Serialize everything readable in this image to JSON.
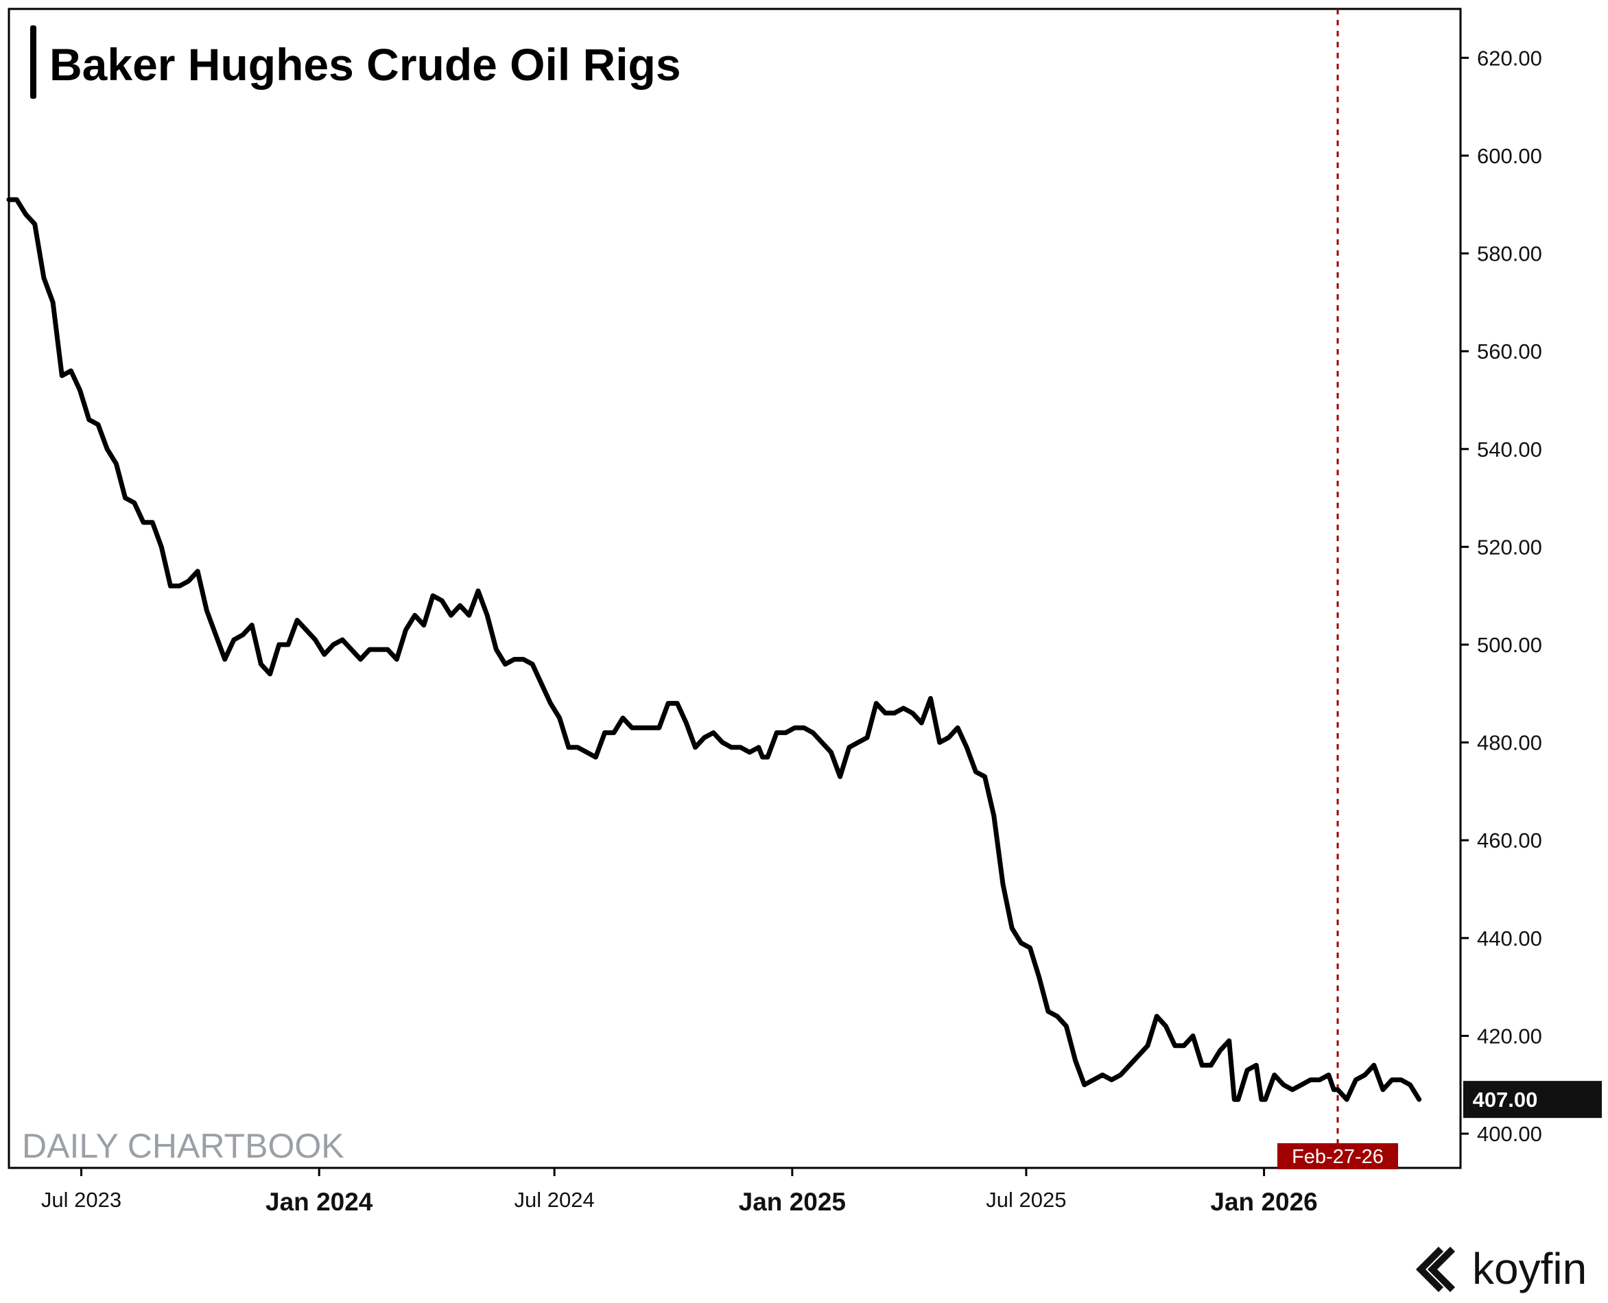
{
  "title": "Baker Hughes Crude Oil Rigs",
  "watermark": "DAILY CHARTBOOK",
  "brand": {
    "name": "koyfin",
    "logo_icon": "koyfin-chevron-icon"
  },
  "colors": {
    "line": "#000000",
    "marker": "#a00000",
    "last_value_bg": "#111111",
    "watermark": "#9aa0a6"
  },
  "chart_data": {
    "type": "line",
    "title": "Baker Hughes Crude Oil Rigs",
    "xlabel": "",
    "ylabel": "",
    "ylim": [
      393,
      630
    ],
    "xlim": [
      "2023-05-06",
      "2026-06-02"
    ],
    "y_axis_position": "right",
    "yticks": [
      400,
      420,
      440,
      460,
      480,
      500,
      520,
      540,
      560,
      580,
      600,
      620
    ],
    "ytick_labels": [
      "400.00",
      "420.00",
      "440.00",
      "460.00",
      "480.00",
      "500.00",
      "520.00",
      "540.00",
      "560.00",
      "580.00",
      "600.00",
      "620.00"
    ],
    "xticks": [
      {
        "date": "2023-07-01",
        "label": "Jul 2023",
        "major": false
      },
      {
        "date": "2024-01-01",
        "label": "Jan 2024",
        "major": true
      },
      {
        "date": "2024-07-01",
        "label": "Jul 2024",
        "major": false
      },
      {
        "date": "2025-01-01",
        "label": "Jan 2025",
        "major": true
      },
      {
        "date": "2025-07-01",
        "label": "Jul 2025",
        "major": false
      },
      {
        "date": "2026-01-01",
        "label": "Jan 2026",
        "major": true
      }
    ],
    "grid": false,
    "series": [
      {
        "values": [
          [
            "2023-05-06",
            591
          ],
          [
            "2023-05-12",
            591
          ],
          [
            "2023-05-19",
            588
          ],
          [
            "2023-05-26",
            586
          ],
          [
            "2023-06-02",
            575
          ],
          [
            "2023-06-09",
            570
          ],
          [
            "2023-06-16",
            555
          ],
          [
            "2023-06-23",
            556
          ],
          [
            "2023-06-30",
            552
          ],
          [
            "2023-07-07",
            546
          ],
          [
            "2023-07-14",
            545
          ],
          [
            "2023-07-21",
            540
          ],
          [
            "2023-07-28",
            537
          ],
          [
            "2023-08-04",
            530
          ],
          [
            "2023-08-11",
            529
          ],
          [
            "2023-08-18",
            525
          ],
          [
            "2023-08-25",
            525
          ],
          [
            "2023-09-01",
            520
          ],
          [
            "2023-09-08",
            512
          ],
          [
            "2023-09-15",
            512
          ],
          [
            "2023-09-22",
            513
          ],
          [
            "2023-09-29",
            515
          ],
          [
            "2023-10-06",
            507
          ],
          [
            "2023-10-13",
            502
          ],
          [
            "2023-10-20",
            497
          ],
          [
            "2023-10-27",
            501
          ],
          [
            "2023-11-03",
            502
          ],
          [
            "2023-11-10",
            504
          ],
          [
            "2023-11-17",
            496
          ],
          [
            "2023-11-24",
            494
          ],
          [
            "2023-12-01",
            500
          ],
          [
            "2023-12-08",
            500
          ],
          [
            "2023-12-15",
            505
          ],
          [
            "2023-12-22",
            503
          ],
          [
            "2023-12-29",
            501
          ],
          [
            "2024-01-05",
            498
          ],
          [
            "2024-01-12",
            500
          ],
          [
            "2024-01-19",
            501
          ],
          [
            "2024-01-26",
            499
          ],
          [
            "2024-02-02",
            497
          ],
          [
            "2024-02-09",
            499
          ],
          [
            "2024-02-16",
            499
          ],
          [
            "2024-02-23",
            499
          ],
          [
            "2024-03-01",
            497
          ],
          [
            "2024-03-08",
            503
          ],
          [
            "2024-03-15",
            506
          ],
          [
            "2024-03-22",
            504
          ],
          [
            "2024-03-29",
            510
          ],
          [
            "2024-04-05",
            509
          ],
          [
            "2024-04-12",
            506
          ],
          [
            "2024-04-19",
            508
          ],
          [
            "2024-04-26",
            506
          ],
          [
            "2024-05-03",
            511
          ],
          [
            "2024-05-10",
            506
          ],
          [
            "2024-05-17",
            499
          ],
          [
            "2024-05-24",
            496
          ],
          [
            "2024-05-31",
            497
          ],
          [
            "2024-06-07",
            497
          ],
          [
            "2024-06-14",
            496
          ],
          [
            "2024-06-21",
            492
          ],
          [
            "2024-06-28",
            488
          ],
          [
            "2024-07-05",
            485
          ],
          [
            "2024-07-12",
            479
          ],
          [
            "2024-07-19",
            479
          ],
          [
            "2024-07-26",
            478
          ],
          [
            "2024-08-02",
            477
          ],
          [
            "2024-08-09",
            482
          ],
          [
            "2024-08-16",
            482
          ],
          [
            "2024-08-23",
            485
          ],
          [
            "2024-08-30",
            483
          ],
          [
            "2024-09-06",
            483
          ],
          [
            "2024-09-13",
            483
          ],
          [
            "2024-09-20",
            483
          ],
          [
            "2024-09-27",
            488
          ],
          [
            "2024-10-04",
            488
          ],
          [
            "2024-10-11",
            484
          ],
          [
            "2024-10-18",
            479
          ],
          [
            "2024-10-25",
            481
          ],
          [
            "2024-11-01",
            482
          ],
          [
            "2024-11-08",
            480
          ],
          [
            "2024-11-15",
            479
          ],
          [
            "2024-11-22",
            479
          ],
          [
            "2024-11-29",
            478
          ],
          [
            "2024-12-06",
            479
          ],
          [
            "2024-12-09",
            477
          ],
          [
            "2024-12-13",
            477
          ],
          [
            "2024-12-20",
            482
          ],
          [
            "2024-12-27",
            482
          ],
          [
            "2025-01-03",
            483
          ],
          [
            "2025-01-10",
            483
          ],
          [
            "2025-01-17",
            482
          ],
          [
            "2025-01-24",
            480
          ],
          [
            "2025-01-31",
            478
          ],
          [
            "2025-02-07",
            473
          ],
          [
            "2025-02-14",
            479
          ],
          [
            "2025-02-21",
            480
          ],
          [
            "2025-02-28",
            481
          ],
          [
            "2025-03-07",
            488
          ],
          [
            "2025-03-14",
            486
          ],
          [
            "2025-03-21",
            486
          ],
          [
            "2025-03-28",
            487
          ],
          [
            "2025-04-04",
            486
          ],
          [
            "2025-04-11",
            484
          ],
          [
            "2025-04-18",
            489
          ],
          [
            "2025-04-25",
            480
          ],
          [
            "2025-05-02",
            481
          ],
          [
            "2025-05-09",
            483
          ],
          [
            "2025-05-16",
            479
          ],
          [
            "2025-05-23",
            474
          ],
          [
            "2025-05-30",
            473
          ],
          [
            "2025-06-06",
            465
          ],
          [
            "2025-06-13",
            451
          ],
          [
            "2025-06-20",
            442
          ],
          [
            "2025-06-27",
            439
          ],
          [
            "2025-07-04",
            438
          ],
          [
            "2025-07-11",
            432
          ],
          [
            "2025-07-18",
            425
          ],
          [
            "2025-07-25",
            424
          ],
          [
            "2025-08-01",
            422
          ],
          [
            "2025-08-08",
            415
          ],
          [
            "2025-08-15",
            410
          ],
          [
            "2025-08-22",
            411
          ],
          [
            "2025-08-29",
            412
          ],
          [
            "2025-09-05",
            411
          ],
          [
            "2025-09-12",
            412
          ],
          [
            "2025-09-19",
            414
          ],
          [
            "2025-09-26",
            416
          ],
          [
            "2025-10-03",
            418
          ],
          [
            "2025-10-10",
            424
          ],
          [
            "2025-10-17",
            422
          ],
          [
            "2025-10-24",
            418
          ],
          [
            "2025-10-31",
            418
          ],
          [
            "2025-11-07",
            420
          ],
          [
            "2025-11-14",
            414
          ],
          [
            "2025-11-21",
            414
          ],
          [
            "2025-11-28",
            417
          ],
          [
            "2025-12-05",
            419
          ],
          [
            "2025-12-09",
            407
          ],
          [
            "2025-12-12",
            407
          ],
          [
            "2025-12-19",
            413
          ],
          [
            "2025-12-26",
            414
          ],
          [
            "2025-12-30",
            407
          ],
          [
            "2026-01-02",
            407
          ],
          [
            "2026-01-09",
            412
          ],
          [
            "2026-01-16",
            410
          ],
          [
            "2026-01-23",
            409
          ],
          [
            "2026-01-30",
            410
          ],
          [
            "2026-02-06",
            411
          ],
          [
            "2026-02-13",
            411
          ],
          [
            "2026-02-20",
            412
          ],
          [
            "2026-02-24",
            409
          ],
          [
            "2026-02-27",
            409
          ],
          [
            "2026-03-06",
            407
          ],
          [
            "2026-03-13",
            411
          ],
          [
            "2026-03-20",
            412
          ],
          [
            "2026-03-27",
            414
          ],
          [
            "2026-04-03",
            409
          ],
          [
            "2026-04-10",
            411
          ],
          [
            "2026-04-17",
            411
          ],
          [
            "2026-04-24",
            410
          ],
          [
            "2026-05-01",
            407
          ]
        ]
      }
    ],
    "marker": {
      "date": "2026-02-27",
      "label": "Feb-27-26",
      "style": "dashed-vertical"
    },
    "last_value": {
      "value": 407,
      "label": "407.00"
    }
  }
}
